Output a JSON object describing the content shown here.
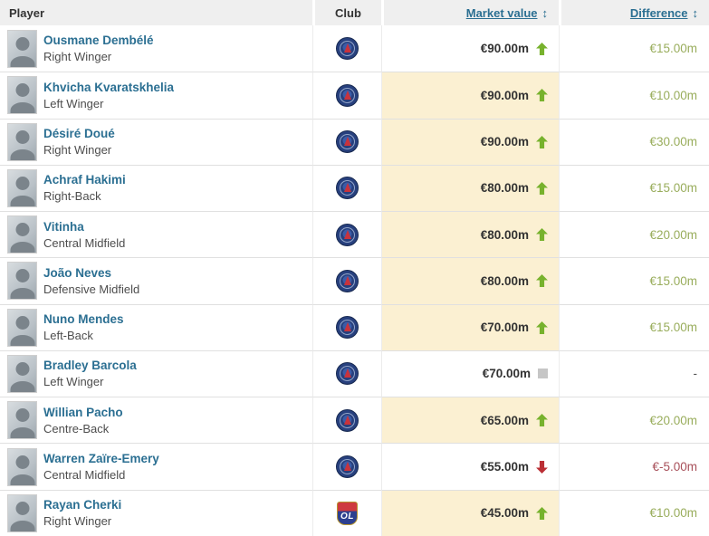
{
  "table": {
    "columns": {
      "player": "Player",
      "club": "Club",
      "market_value": "Market value",
      "difference": "Difference",
      "sort_icon": "↕"
    },
    "rows": [
      {
        "name": "Ousmane Dembélé",
        "position": "Right Winger",
        "club": "psg",
        "market_value": "€90.00m",
        "trend": "up",
        "difference": "€15.00m",
        "highlight": false
      },
      {
        "name": "Khvicha Kvaratskhelia",
        "position": "Left Winger",
        "club": "psg",
        "market_value": "€90.00m",
        "trend": "up",
        "difference": "€10.00m",
        "highlight": true
      },
      {
        "name": "Désiré Doué",
        "position": "Right Winger",
        "club": "psg",
        "market_value": "€90.00m",
        "trend": "up",
        "difference": "€30.00m",
        "highlight": true
      },
      {
        "name": "Achraf Hakimi",
        "position": "Right-Back",
        "club": "psg",
        "market_value": "€80.00m",
        "trend": "up",
        "difference": "€15.00m",
        "highlight": true
      },
      {
        "name": "Vitinha",
        "position": "Central Midfield",
        "club": "psg",
        "market_value": "€80.00m",
        "trend": "up",
        "difference": "€20.00m",
        "highlight": true
      },
      {
        "name": "João Neves",
        "position": "Defensive Midfield",
        "club": "psg",
        "market_value": "€80.00m",
        "trend": "up",
        "difference": "€15.00m",
        "highlight": true
      },
      {
        "name": "Nuno Mendes",
        "position": "Left-Back",
        "club": "psg",
        "market_value": "€70.00m",
        "trend": "up",
        "difference": "€15.00m",
        "highlight": true
      },
      {
        "name": "Bradley Barcola",
        "position": "Left Winger",
        "club": "psg",
        "market_value": "€70.00m",
        "trend": "same",
        "difference": "-",
        "highlight": false
      },
      {
        "name": "Willian Pacho",
        "position": "Centre-Back",
        "club": "psg",
        "market_value": "€65.00m",
        "trend": "up",
        "difference": "€20.00m",
        "highlight": true
      },
      {
        "name": "Warren Zaïre-Emery",
        "position": "Central Midfield",
        "club": "psg",
        "market_value": "€55.00m",
        "trend": "down",
        "difference": "€-5.00m",
        "highlight": false
      },
      {
        "name": "Rayan Cherki",
        "position": "Right Winger",
        "club": "ol",
        "market_value": "€45.00m",
        "trend": "up",
        "difference": "€10.00m",
        "highlight": true
      }
    ]
  },
  "badges": {
    "ol_text": "OL"
  },
  "colors": {
    "accent_link": "#2b6f92",
    "row_highlight": "#fbf0d2",
    "positive": "#99ad5c",
    "negative": "#a8505a",
    "arrow_up": "#77b22d",
    "arrow_down": "#bb2f35",
    "neutral_square": "#c6c6c6",
    "header_bg": "#efefef",
    "border": "#e0e0e0"
  }
}
